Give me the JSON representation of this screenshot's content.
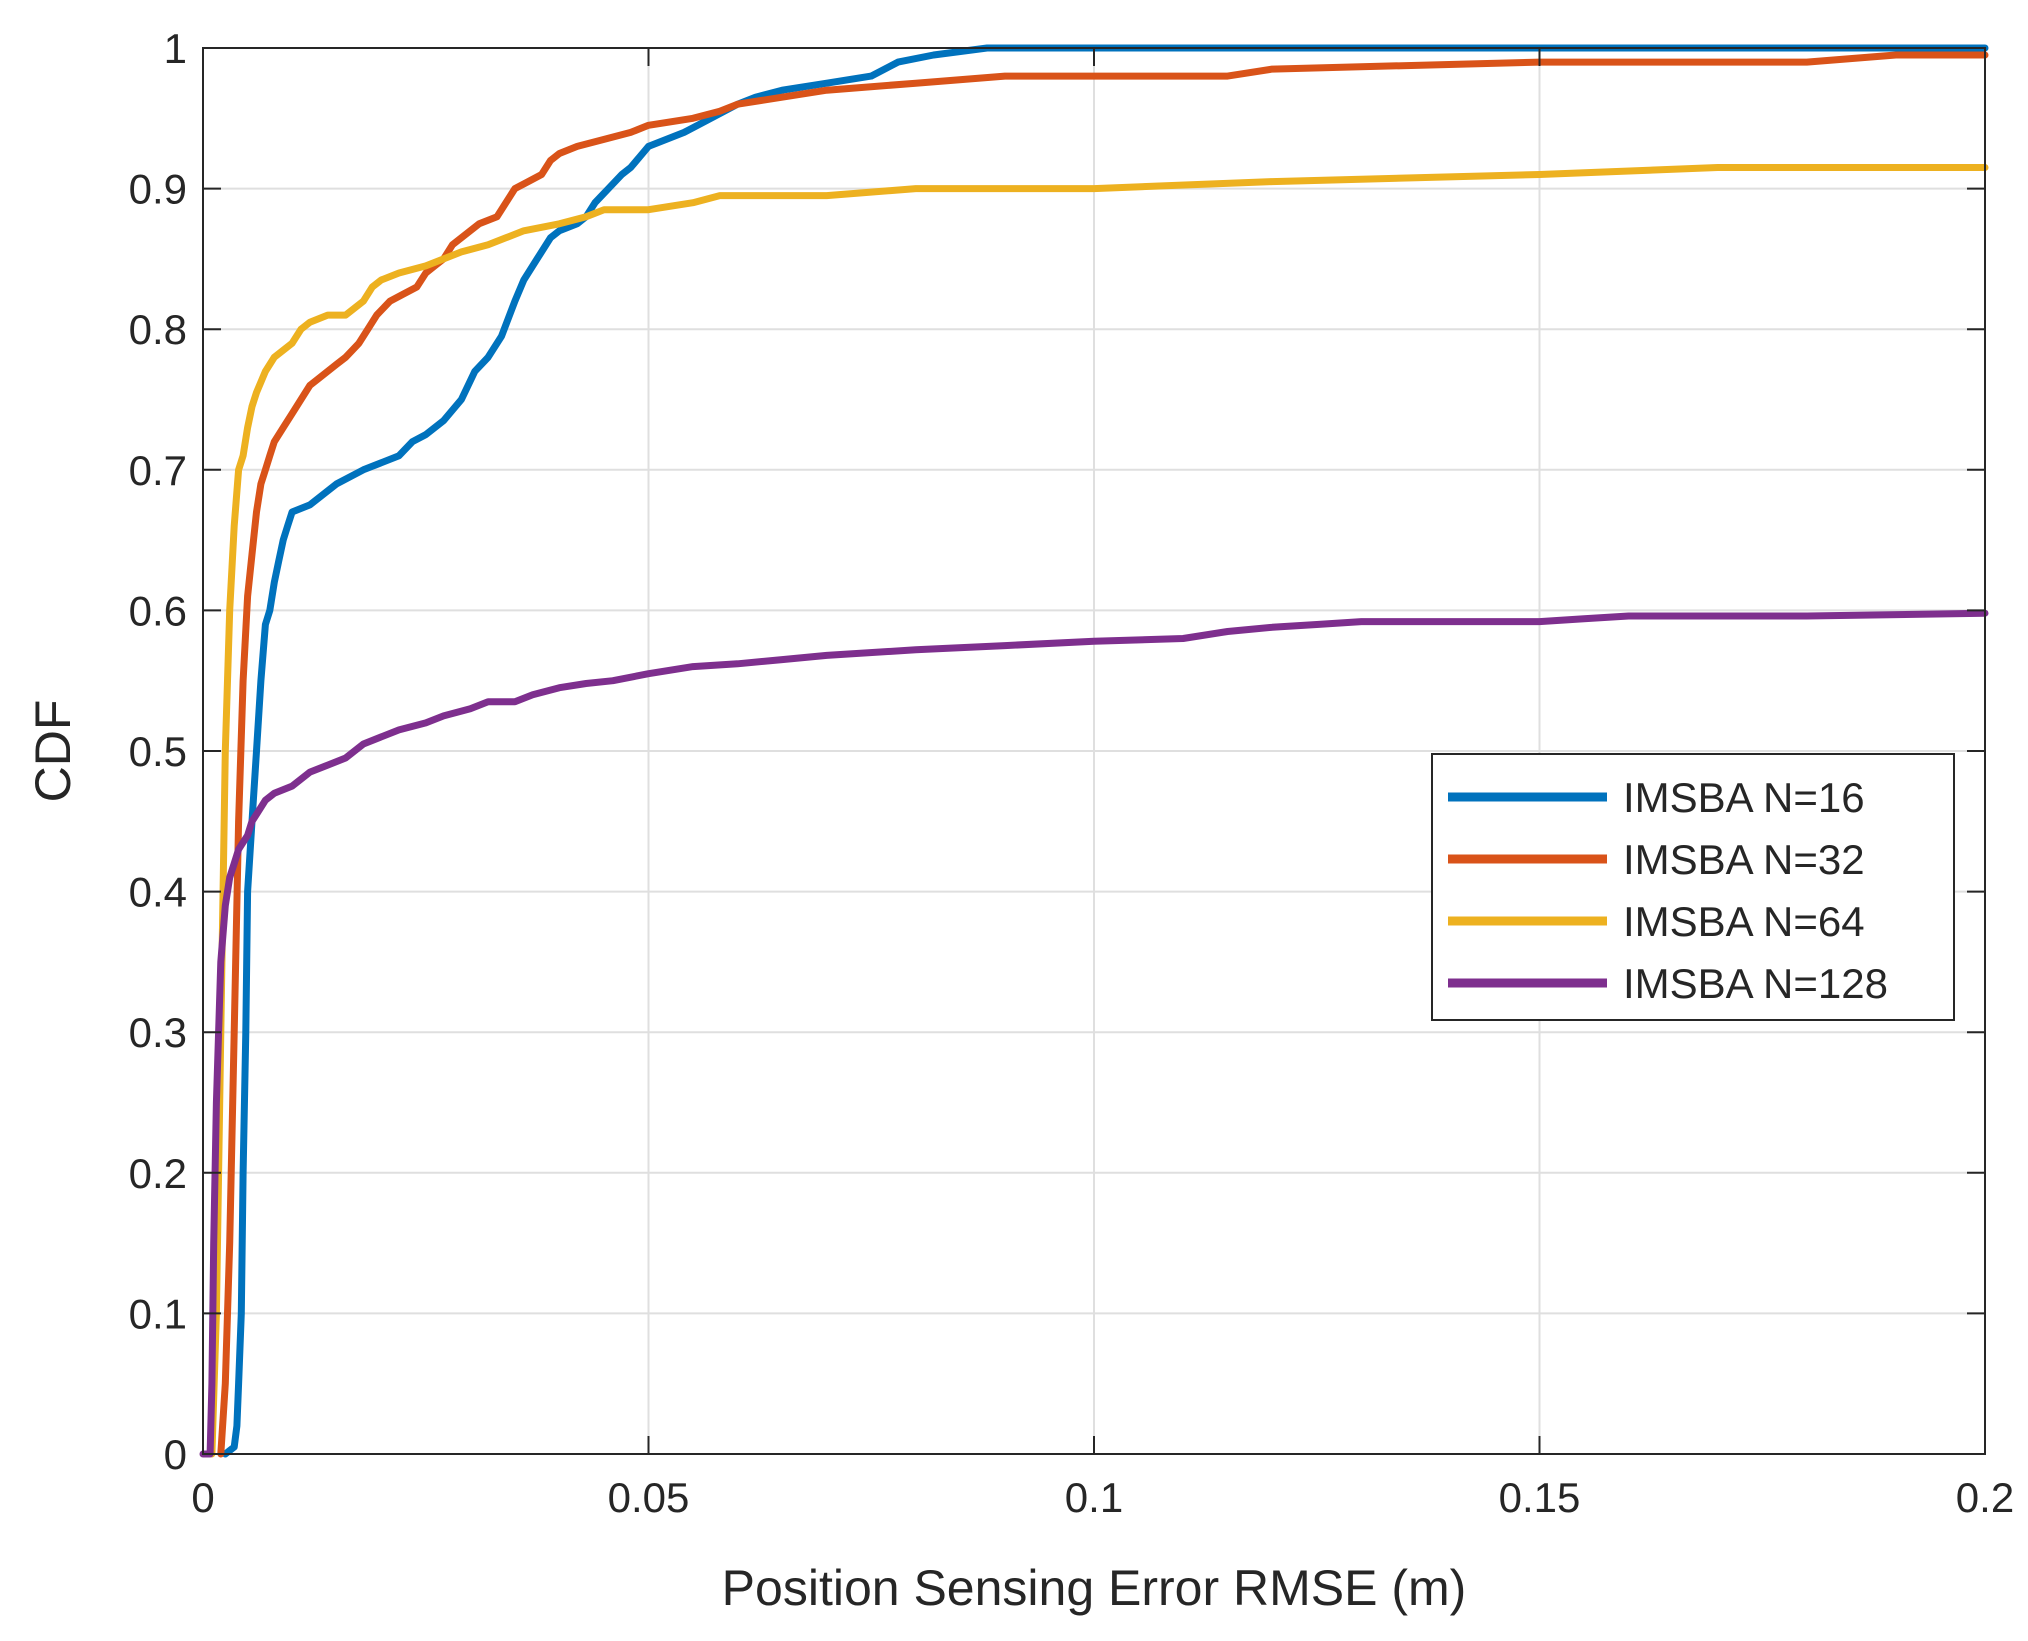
{
  "chart_data": {
    "type": "line",
    "title": "",
    "xlabel": "Position Sensing Error RMSE (m)",
    "ylabel": "CDF",
    "xlim": [
      0,
      0.2
    ],
    "ylim": [
      0,
      1
    ],
    "xticks": [
      0,
      0.05,
      0.1,
      0.15,
      0.2
    ],
    "xtick_labels": [
      "0",
      "0.05",
      "0.1",
      "0.15",
      "0.2"
    ],
    "yticks": [
      0,
      0.1,
      0.2,
      0.3,
      0.4,
      0.5,
      0.6,
      0.7,
      0.8,
      0.9,
      1
    ],
    "ytick_labels": [
      "0",
      "0.1",
      "0.2",
      "0.3",
      "0.4",
      "0.5",
      "0.6",
      "0.7",
      "0.8",
      "0.9",
      "1"
    ],
    "grid": true,
    "legend_position": "right",
    "series": [
      {
        "name": "IMSBA N=16",
        "color": "#0072BD",
        "points": [
          [
            0.0025,
            0
          ],
          [
            0.0035,
            0.005
          ],
          [
            0.0038,
            0.02
          ],
          [
            0.004,
            0.05
          ],
          [
            0.0043,
            0.1
          ],
          [
            0.0045,
            0.2
          ],
          [
            0.0048,
            0.3
          ],
          [
            0.005,
            0.4
          ],
          [
            0.0055,
            0.45
          ],
          [
            0.006,
            0.5
          ],
          [
            0.0065,
            0.55
          ],
          [
            0.007,
            0.59
          ],
          [
            0.0075,
            0.6
          ],
          [
            0.008,
            0.62
          ],
          [
            0.0085,
            0.635
          ],
          [
            0.009,
            0.65
          ],
          [
            0.0095,
            0.66
          ],
          [
            0.01,
            0.67
          ],
          [
            0.012,
            0.675
          ],
          [
            0.015,
            0.69
          ],
          [
            0.018,
            0.7
          ],
          [
            0.02,
            0.705
          ],
          [
            0.022,
            0.71
          ],
          [
            0.0235,
            0.72
          ],
          [
            0.025,
            0.725
          ],
          [
            0.027,
            0.735
          ],
          [
            0.029,
            0.75
          ],
          [
            0.0305,
            0.77
          ],
          [
            0.032,
            0.78
          ],
          [
            0.0335,
            0.795
          ],
          [
            0.035,
            0.82
          ],
          [
            0.036,
            0.835
          ],
          [
            0.0375,
            0.85
          ],
          [
            0.039,
            0.865
          ],
          [
            0.04,
            0.87
          ],
          [
            0.042,
            0.875
          ],
          [
            0.043,
            0.88
          ],
          [
            0.044,
            0.89
          ],
          [
            0.0455,
            0.9
          ],
          [
            0.047,
            0.91
          ],
          [
            0.048,
            0.915
          ],
          [
            0.05,
            0.93
          ],
          [
            0.052,
            0.935
          ],
          [
            0.054,
            0.94
          ],
          [
            0.057,
            0.95
          ],
          [
            0.06,
            0.96
          ],
          [
            0.062,
            0.965
          ],
          [
            0.065,
            0.97
          ],
          [
            0.07,
            0.975
          ],
          [
            0.075,
            0.98
          ],
          [
            0.078,
            0.99
          ],
          [
            0.082,
            0.995
          ],
          [
            0.088,
            1
          ],
          [
            0.2,
            1
          ]
        ]
      },
      {
        "name": "IMSBA N=32",
        "color": "#D95319",
        "points": [
          [
            0.002,
            0
          ],
          [
            0.0025,
            0.05
          ],
          [
            0.003,
            0.15
          ],
          [
            0.0035,
            0.3
          ],
          [
            0.004,
            0.45
          ],
          [
            0.0045,
            0.55
          ],
          [
            0.005,
            0.61
          ],
          [
            0.0055,
            0.64
          ],
          [
            0.006,
            0.67
          ],
          [
            0.0065,
            0.69
          ],
          [
            0.007,
            0.7
          ],
          [
            0.0075,
            0.71
          ],
          [
            0.008,
            0.72
          ],
          [
            0.009,
            0.73
          ],
          [
            0.01,
            0.74
          ],
          [
            0.011,
            0.75
          ],
          [
            0.012,
            0.76
          ],
          [
            0.013,
            0.765
          ],
          [
            0.015,
            0.775
          ],
          [
            0.016,
            0.78
          ],
          [
            0.0175,
            0.79
          ],
          [
            0.0185,
            0.8
          ],
          [
            0.0195,
            0.81
          ],
          [
            0.021,
            0.82
          ],
          [
            0.0225,
            0.825
          ],
          [
            0.024,
            0.83
          ],
          [
            0.025,
            0.84
          ],
          [
            0.026,
            0.845
          ],
          [
            0.027,
            0.85
          ],
          [
            0.028,
            0.86
          ],
          [
            0.029,
            0.865
          ],
          [
            0.03,
            0.87
          ],
          [
            0.031,
            0.875
          ],
          [
            0.033,
            0.88
          ],
          [
            0.034,
            0.89
          ],
          [
            0.035,
            0.9
          ],
          [
            0.0365,
            0.905
          ],
          [
            0.038,
            0.91
          ],
          [
            0.039,
            0.92
          ],
          [
            0.04,
            0.925
          ],
          [
            0.042,
            0.93
          ],
          [
            0.045,
            0.935
          ],
          [
            0.048,
            0.94
          ],
          [
            0.05,
            0.945
          ],
          [
            0.055,
            0.95
          ],
          [
            0.058,
            0.955
          ],
          [
            0.06,
            0.96
          ],
          [
            0.065,
            0.965
          ],
          [
            0.07,
            0.97
          ],
          [
            0.08,
            0.975
          ],
          [
            0.09,
            0.98
          ],
          [
            0.1,
            0.98
          ],
          [
            0.115,
            0.98
          ],
          [
            0.12,
            0.985
          ],
          [
            0.15,
            0.99
          ],
          [
            0.18,
            0.99
          ],
          [
            0.19,
            0.995
          ],
          [
            0.2,
            0.995
          ]
        ]
      },
      {
        "name": "IMSBA N=64",
        "color": "#EDB120",
        "points": [
          [
            0.001,
            0
          ],
          [
            0.0015,
            0.1
          ],
          [
            0.002,
            0.3
          ],
          [
            0.0025,
            0.5
          ],
          [
            0.003,
            0.6
          ],
          [
            0.0035,
            0.66
          ],
          [
            0.004,
            0.7
          ],
          [
            0.0045,
            0.71
          ],
          [
            0.005,
            0.73
          ],
          [
            0.0055,
            0.745
          ],
          [
            0.006,
            0.755
          ],
          [
            0.007,
            0.77
          ],
          [
            0.008,
            0.78
          ],
          [
            0.009,
            0.785
          ],
          [
            0.01,
            0.79
          ],
          [
            0.011,
            0.8
          ],
          [
            0.012,
            0.805
          ],
          [
            0.014,
            0.81
          ],
          [
            0.016,
            0.81
          ],
          [
            0.017,
            0.815
          ],
          [
            0.018,
            0.82
          ],
          [
            0.019,
            0.83
          ],
          [
            0.02,
            0.835
          ],
          [
            0.022,
            0.84
          ],
          [
            0.025,
            0.845
          ],
          [
            0.027,
            0.85
          ],
          [
            0.029,
            0.855
          ],
          [
            0.032,
            0.86
          ],
          [
            0.034,
            0.865
          ],
          [
            0.036,
            0.87
          ],
          [
            0.04,
            0.875
          ],
          [
            0.043,
            0.88
          ],
          [
            0.045,
            0.885
          ],
          [
            0.05,
            0.885
          ],
          [
            0.055,
            0.89
          ],
          [
            0.058,
            0.895
          ],
          [
            0.07,
            0.895
          ],
          [
            0.08,
            0.9
          ],
          [
            0.1,
            0.9
          ],
          [
            0.12,
            0.905
          ],
          [
            0.15,
            0.91
          ],
          [
            0.17,
            0.915
          ],
          [
            0.2,
            0.915
          ]
        ]
      },
      {
        "name": "IMSBA N=128",
        "color": "#7E2F8E",
        "points": [
          [
            0,
            0
          ],
          [
            0.0008,
            0
          ],
          [
            0.001,
            0.05
          ],
          [
            0.0012,
            0.15
          ],
          [
            0.0015,
            0.25
          ],
          [
            0.002,
            0.35
          ],
          [
            0.0025,
            0.39
          ],
          [
            0.003,
            0.41
          ],
          [
            0.0035,
            0.42
          ],
          [
            0.004,
            0.43
          ],
          [
            0.005,
            0.44
          ],
          [
            0.0055,
            0.45
          ],
          [
            0.006,
            0.455
          ],
          [
            0.007,
            0.465
          ],
          [
            0.008,
            0.47
          ],
          [
            0.01,
            0.475
          ],
          [
            0.011,
            0.48
          ],
          [
            0.012,
            0.485
          ],
          [
            0.014,
            0.49
          ],
          [
            0.016,
            0.495
          ],
          [
            0.018,
            0.505
          ],
          [
            0.02,
            0.51
          ],
          [
            0.022,
            0.515
          ],
          [
            0.025,
            0.52
          ],
          [
            0.027,
            0.525
          ],
          [
            0.03,
            0.53
          ],
          [
            0.032,
            0.535
          ],
          [
            0.035,
            0.535
          ],
          [
            0.037,
            0.54
          ],
          [
            0.04,
            0.545
          ],
          [
            0.043,
            0.548
          ],
          [
            0.046,
            0.55
          ],
          [
            0.05,
            0.555
          ],
          [
            0.055,
            0.56
          ],
          [
            0.06,
            0.562
          ],
          [
            0.065,
            0.565
          ],
          [
            0.07,
            0.568
          ],
          [
            0.08,
            0.572
          ],
          [
            0.09,
            0.575
          ],
          [
            0.1,
            0.578
          ],
          [
            0.11,
            0.58
          ],
          [
            0.115,
            0.585
          ],
          [
            0.12,
            0.588
          ],
          [
            0.125,
            0.59
          ],
          [
            0.13,
            0.592
          ],
          [
            0.15,
            0.592
          ],
          [
            0.155,
            0.594
          ],
          [
            0.16,
            0.596
          ],
          [
            0.18,
            0.596
          ],
          [
            0.2,
            0.598
          ]
        ]
      }
    ]
  }
}
